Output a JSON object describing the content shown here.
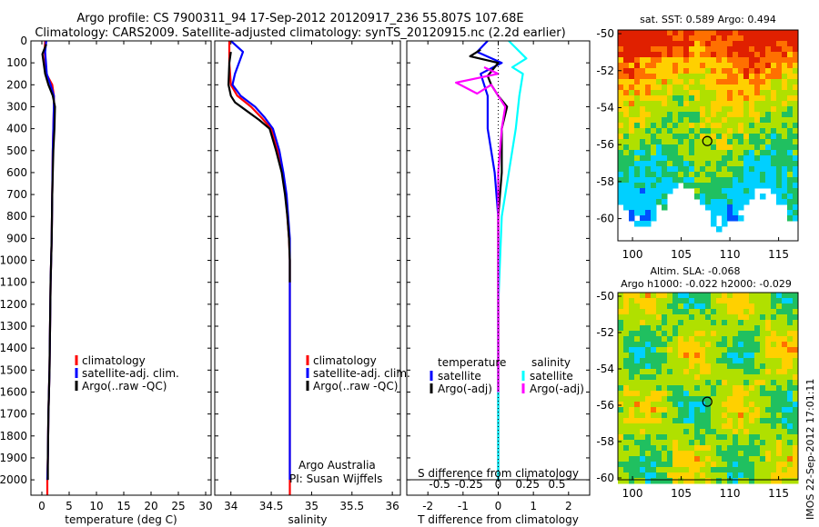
{
  "header": {
    "title_line1": "Argo profile: CS 7900311_94 17-Sep-2012 20120917_236 55.807S 107.68E",
    "title_line2": "Climatology: CARS2009. Satellite-adjusted climatology: synTS_20120915.nc (2.2d earlier)"
  },
  "credit": {
    "line1": "Argo Australia",
    "line2": "PI: Susan Wijffels"
  },
  "stamp": "IMOS 22-Sep-2012 17:01:11",
  "colors": {
    "climatology": "#ff0000",
    "satellite": "#0000ff",
    "argo": "#000000",
    "sal_satellite": "#00ffff",
    "sal_argo": "#ff00ff"
  },
  "chart_data": [
    {
      "type": "line",
      "xlabel": "temperature (deg C)",
      "ylabel": "",
      "xlim": [
        -2,
        31
      ],
      "ylim": [
        2070,
        0
      ],
      "xticks": [
        0,
        5,
        10,
        15,
        20,
        25,
        30
      ],
      "yticks": [
        0,
        100,
        200,
        300,
        400,
        500,
        600,
        700,
        800,
        900,
        1000,
        1100,
        1200,
        1300,
        1400,
        1500,
        1600,
        1700,
        1800,
        1900,
        2000
      ],
      "legend": [
        "climatology",
        "satellite-adj. clim.",
        "Argo(..raw -QC)"
      ],
      "series": [
        {
          "name": "climatology",
          "color": "#ff0000",
          "x": [
            0.6,
            0.5,
            0.8,
            1.9,
            2.2,
            2.2,
            2.1,
            2.0,
            1.9,
            1.8,
            1.6,
            1.5,
            1.4,
            1.2,
            1.1,
            1.0,
            1.0
          ],
          "y": [
            0,
            50,
            150,
            200,
            250,
            300,
            400,
            500,
            700,
            900,
            1100,
            1300,
            1500,
            1700,
            1900,
            2000,
            2070
          ]
        },
        {
          "name": "satellite-adj. clim.",
          "color": "#0000ff",
          "x": [
            0.8,
            0.6,
            0.9,
            1.6,
            2.2,
            2.2,
            2.1,
            2.0,
            1.9,
            1.8,
            1.6,
            1.5,
            1.4,
            1.2,
            1.1,
            1.0
          ],
          "y": [
            0,
            50,
            150,
            200,
            250,
            300,
            400,
            500,
            700,
            900,
            1100,
            1300,
            1500,
            1700,
            1900,
            2000
          ]
        },
        {
          "name": "Argo(..raw -QC)",
          "color": "#000000",
          "x": [
            0.8,
            0.1,
            0.6,
            1.2,
            2.0,
            2.4,
            2.3,
            2.1,
            1.9,
            1.8,
            1.6,
            1.5,
            1.4,
            1.2,
            1.1,
            1.1
          ],
          "y": [
            15,
            60,
            150,
            200,
            250,
            300,
            400,
            500,
            700,
            900,
            1100,
            1300,
            1500,
            1700,
            1900,
            2000
          ]
        }
      ]
    },
    {
      "type": "line",
      "xlabel": "salinity",
      "ylabel": "",
      "xlim": [
        33.8,
        36.1
      ],
      "ylim": [
        2070,
        0
      ],
      "xticks": [
        34,
        34.5,
        35,
        35.5,
        36
      ],
      "xticklabels": [
        "34",
        "34.5",
        "35",
        "35.5",
        "36"
      ],
      "legend": [
        "climatology",
        "satellite-adj. clim.",
        "Argo(..raw -QC)"
      ],
      "series": [
        {
          "name": "climatology",
          "color": "#ff0000",
          "x": [
            33.98,
            33.98,
            34.0,
            34.08,
            34.25,
            34.38,
            34.5,
            34.58,
            34.64,
            34.68,
            34.7,
            34.72,
            34.73,
            34.73,
            34.73,
            34.73,
            34.73
          ],
          "y": [
            0,
            100,
            200,
            250,
            300,
            350,
            400,
            500,
            600,
            700,
            800,
            900,
            1000,
            1200,
            1500,
            1800,
            2070
          ]
        },
        {
          "name": "satellite-adj. clim.",
          "color": "#0000ff",
          "x": [
            34.0,
            34.15,
            34.05,
            34.02,
            34.12,
            34.3,
            34.42,
            34.52,
            34.6,
            34.65,
            34.69,
            34.71,
            34.73,
            34.73,
            34.73,
            34.73
          ],
          "y": [
            0,
            50,
            150,
            200,
            250,
            300,
            350,
            400,
            500,
            600,
            700,
            800,
            900,
            1000,
            1200,
            2000
          ]
        },
        {
          "name": "Argo(..raw -QC)",
          "color": "#000000",
          "x": [
            34.0,
            33.98,
            33.97,
            34.0,
            34.05,
            34.2,
            34.35,
            34.48,
            34.56,
            34.63,
            34.67,
            34.7,
            34.72,
            34.73,
            34.73
          ],
          "y": [
            50,
            100,
            200,
            250,
            280,
            320,
            360,
            400,
            500,
            600,
            700,
            800,
            900,
            1000,
            1100
          ]
        }
      ]
    },
    {
      "type": "line",
      "xlabel": "T difference from climatology",
      "xlabel_top": "S difference from climatology",
      "xlim": [
        -2.6,
        2.6
      ],
      "ylim": [
        2070,
        0
      ],
      "xticks": [
        -2,
        -1,
        0,
        1,
        2
      ],
      "xticks_top": [
        -0.5,
        -0.25,
        0,
        0.25,
        0.5
      ],
      "xticklabels_top": [
        "-0.5",
        "-0.25",
        "0",
        "0.25",
        "0.5"
      ],
      "legend_groups": [
        "temperature",
        "salinity"
      ],
      "legend": [
        "satellite",
        "Argo(-adj)",
        "satellite",
        "Argo(-adj)"
      ],
      "series": [
        {
          "name": "satellite",
          "group": "temperature",
          "color": "#0000ff",
          "x": [
            -0.3,
            -0.6,
            0.1,
            -0.5,
            -0.3,
            -0.3,
            -0.1,
            0.0,
            0.0,
            0.0,
            0.0,
            0.0
          ],
          "y": [
            0,
            50,
            100,
            150,
            250,
            400,
            600,
            800,
            1000,
            1400,
            1800,
            2000
          ]
        },
        {
          "name": "Argo(-adj)",
          "group": "temperature",
          "color": "#000000",
          "x": [
            -0.5,
            -0.8,
            0.0,
            -0.3,
            -0.2,
            0.0,
            0.25,
            0.1,
            0.1,
            0.0,
            0.0,
            0.0,
            0.0
          ],
          "y": [
            40,
            70,
            100,
            160,
            200,
            250,
            300,
            400,
            600,
            800,
            1200,
            1600,
            2000
          ]
        },
        {
          "name": "satellite",
          "group": "salinity",
          "color": "#00ffff",
          "x": [
            0.3,
            0.8,
            0.4,
            0.7,
            0.6,
            0.5,
            0.3,
            0.1,
            0.0,
            0.0,
            0.0
          ],
          "y": [
            0,
            80,
            120,
            150,
            250,
            400,
            600,
            800,
            1200,
            1600,
            2000
          ]
        },
        {
          "name": "Argo(-adj)",
          "group": "salinity",
          "color": "#ff00ff",
          "x": [
            -0.4,
            0.0,
            -1.2,
            -0.6,
            -0.2,
            0.0,
            0.2,
            0.1,
            0.0,
            0.0,
            0.0,
            0.0
          ],
          "y": [
            120,
            150,
            190,
            240,
            200,
            250,
            300,
            400,
            600,
            800,
            1200,
            1600
          ]
        }
      ]
    },
    {
      "type": "heatmap",
      "title": "sat. SST: 0.589 Argo: 0.494",
      "xlim": [
        98.5,
        117
      ],
      "ylim": [
        -61.2,
        -49.8
      ],
      "xticks": [
        100,
        105,
        110,
        115
      ],
      "yticks": [
        -50,
        -52,
        -54,
        -56,
        -58,
        -60
      ],
      "marker": {
        "x": 107.68,
        "y": -55.807
      }
    },
    {
      "type": "heatmap",
      "title": "Altim. SLA: -0.068",
      "subtitle": "Argo h1000: -0.022 h2000: -0.029",
      "xlim": [
        98.5,
        117
      ],
      "ylim": [
        -60.1,
        -49.8
      ],
      "xticks": [
        100,
        105,
        110,
        115
      ],
      "yticks": [
        -50,
        -52,
        -54,
        -56,
        -58,
        -60
      ],
      "marker": {
        "x": 107.68,
        "y": -55.807
      }
    }
  ]
}
